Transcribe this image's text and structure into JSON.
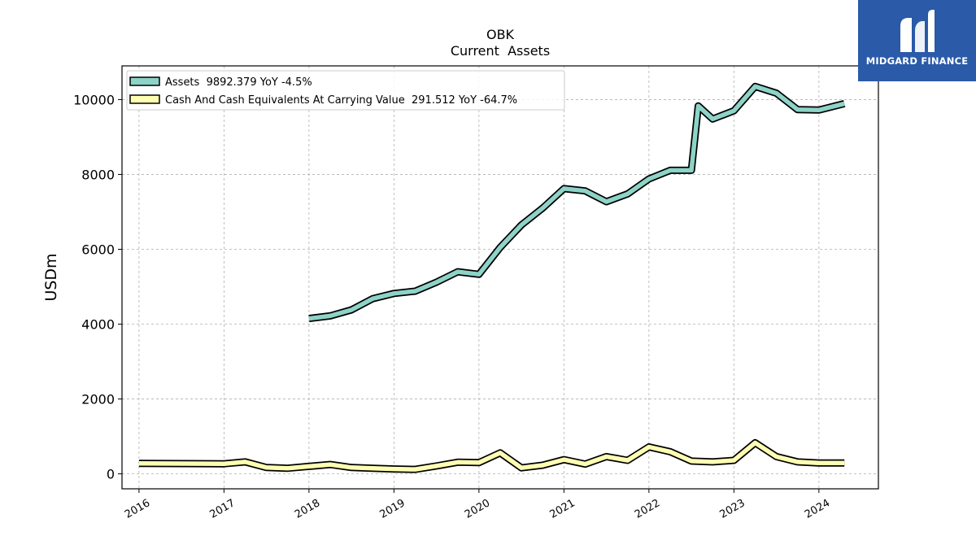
{
  "brand": {
    "name": "MIDGARD FINANCE",
    "bg_color": "#2a5aa8",
    "icon": "midgard-logo-icon"
  },
  "chart_data": {
    "type": "line",
    "title": "OBK",
    "subtitle": "Current  Assets",
    "ylabel": "USDm",
    "xlabel": "",
    "xlim": [
      2015.8,
      2024.7
    ],
    "ylim": [
      -400,
      10900
    ],
    "yticks": [
      0,
      2000,
      4000,
      6000,
      8000,
      10000
    ],
    "xticks": [
      "2016",
      "2017",
      "2018",
      "2019",
      "2020",
      "2021",
      "2022",
      "2023",
      "2024"
    ],
    "grid": true,
    "legend_position": "top-left",
    "series": [
      {
        "name": "Assets  9892.379 YoY -4.5%",
        "color": "#8dd3c7",
        "points": [
          [
            2018.0,
            4150
          ],
          [
            2018.25,
            4220
          ],
          [
            2018.5,
            4380
          ],
          [
            2018.75,
            4680
          ],
          [
            2019.0,
            4820
          ],
          [
            2019.25,
            4880
          ],
          [
            2019.5,
            5120
          ],
          [
            2019.75,
            5400
          ],
          [
            2020.0,
            5330
          ],
          [
            2020.25,
            6050
          ],
          [
            2020.5,
            6650
          ],
          [
            2020.75,
            7100
          ],
          [
            2021.0,
            7620
          ],
          [
            2021.25,
            7560
          ],
          [
            2021.5,
            7270
          ],
          [
            2021.75,
            7480
          ],
          [
            2022.0,
            7880
          ],
          [
            2022.25,
            8110
          ],
          [
            2022.5,
            8110
          ],
          [
            2022.58,
            9830
          ],
          [
            2022.75,
            9480
          ],
          [
            2023.0,
            9700
          ],
          [
            2023.25,
            10350
          ],
          [
            2023.5,
            10170
          ],
          [
            2023.75,
            9730
          ],
          [
            2024.0,
            9720
          ],
          [
            2024.3,
            9892.379
          ]
        ]
      },
      {
        "name": "Cash And Cash Equivalents At Carrying Value  291.512 YoY -64.7%",
        "color": "#ffffb3",
        "points": [
          [
            2016.0,
            280
          ],
          [
            2017.0,
            270
          ],
          [
            2017.25,
            320
          ],
          [
            2017.5,
            170
          ],
          [
            2017.75,
            150
          ],
          [
            2018.0,
            200
          ],
          [
            2018.25,
            250
          ],
          [
            2018.5,
            170
          ],
          [
            2018.75,
            150
          ],
          [
            2019.0,
            130
          ],
          [
            2019.25,
            120
          ],
          [
            2019.5,
            210
          ],
          [
            2019.75,
            310
          ],
          [
            2020.0,
            300
          ],
          [
            2020.25,
            560
          ],
          [
            2020.5,
            160
          ],
          [
            2020.75,
            230
          ],
          [
            2021.0,
            380
          ],
          [
            2021.25,
            260
          ],
          [
            2021.5,
            460
          ],
          [
            2021.75,
            360
          ],
          [
            2022.0,
            720
          ],
          [
            2022.25,
            590
          ],
          [
            2022.5,
            340
          ],
          [
            2022.75,
            320
          ],
          [
            2023.0,
            360
          ],
          [
            2023.25,
            830
          ],
          [
            2023.5,
            460
          ],
          [
            2023.75,
            320
          ],
          [
            2024.0,
            290
          ],
          [
            2024.3,
            291.512
          ]
        ]
      }
    ]
  }
}
